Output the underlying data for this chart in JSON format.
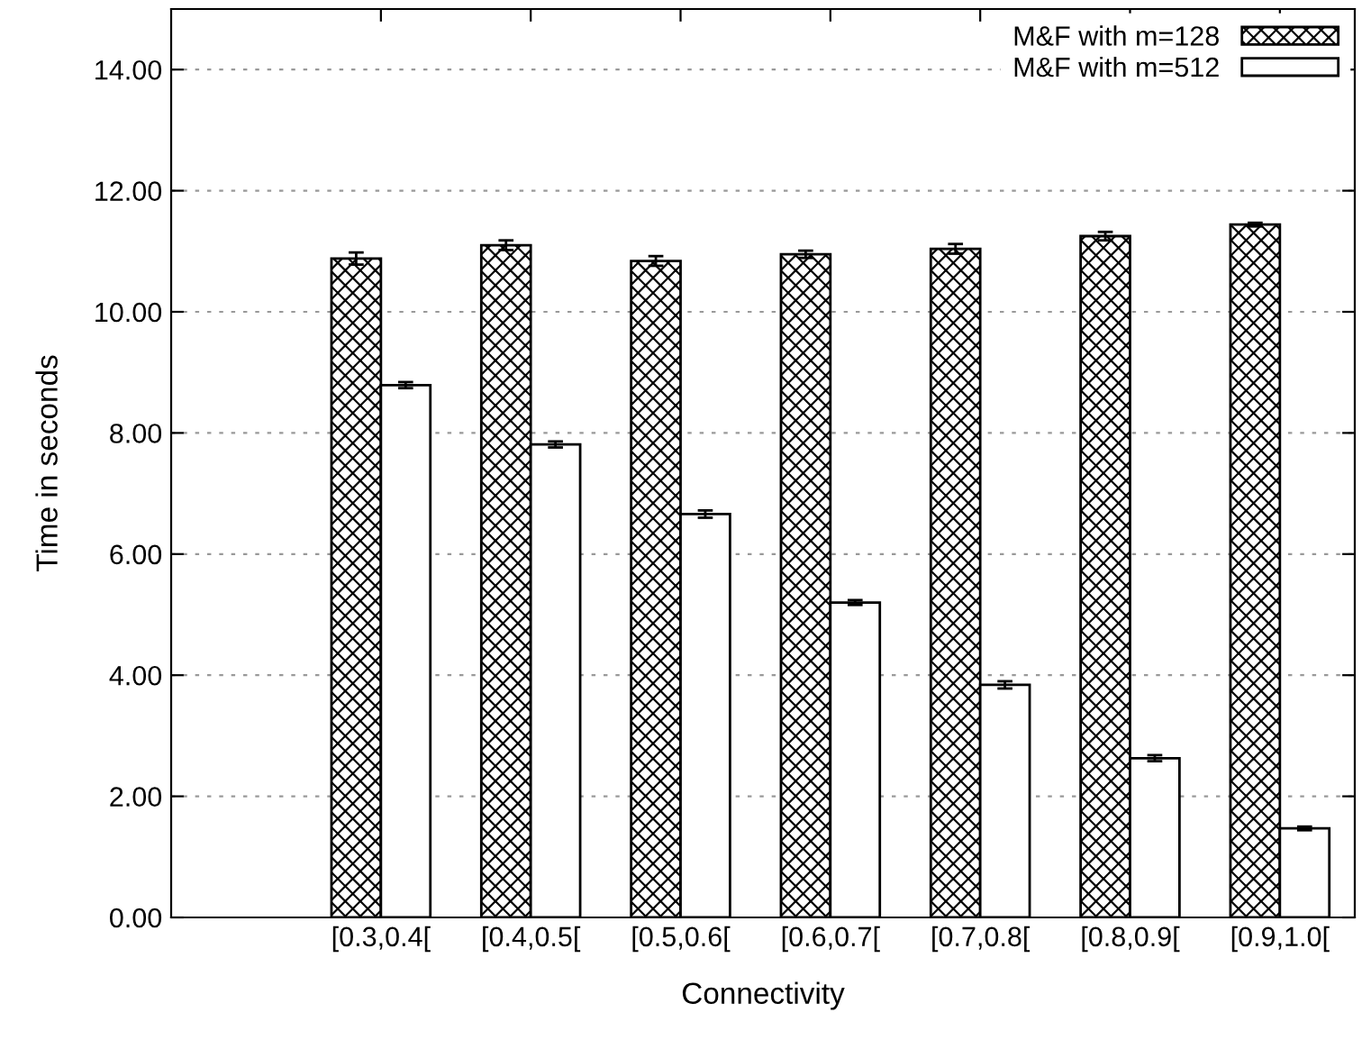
{
  "chart_data": {
    "type": "bar",
    "xlabel": "Connectivity",
    "ylabel": "Time in seconds",
    "categories": [
      "[0.3,0.4[",
      "[0.4,0.5[",
      "[0.5,0.6[",
      "[0.6,0.7[",
      "[0.7,0.8[",
      "[0.8,0.9[",
      "[0.9,1.0["
    ],
    "series": [
      {
        "name": "M&F with m=128",
        "color": "#000000",
        "values": [
          10.88,
          11.1,
          10.84,
          10.95,
          11.04,
          11.25,
          11.44
        ],
        "errors": [
          0.1,
          0.08,
          0.08,
          0.06,
          0.08,
          0.07,
          0.03
        ]
      },
      {
        "name": "M&F with m=512",
        "color": "#ffffff",
        "values": [
          8.79,
          7.81,
          6.66,
          5.2,
          3.84,
          2.63,
          1.47
        ],
        "errors": [
          0.05,
          0.05,
          0.06,
          0.04,
          0.06,
          0.05,
          0.03
        ]
      }
    ],
    "ylim": [
      0,
      15
    ],
    "yticks": [
      {
        "value": 0,
        "label": "0.00"
      },
      {
        "value": 2,
        "label": "2.00"
      },
      {
        "value": 4,
        "label": "4.00"
      },
      {
        "value": 6,
        "label": "6.00"
      },
      {
        "value": 8,
        "label": "8.00"
      },
      {
        "value": 10,
        "label": "10.00"
      },
      {
        "value": 12,
        "label": "12.00"
      },
      {
        "value": 14,
        "label": "14.00"
      }
    ],
    "grid": "y",
    "legend": "top right"
  }
}
